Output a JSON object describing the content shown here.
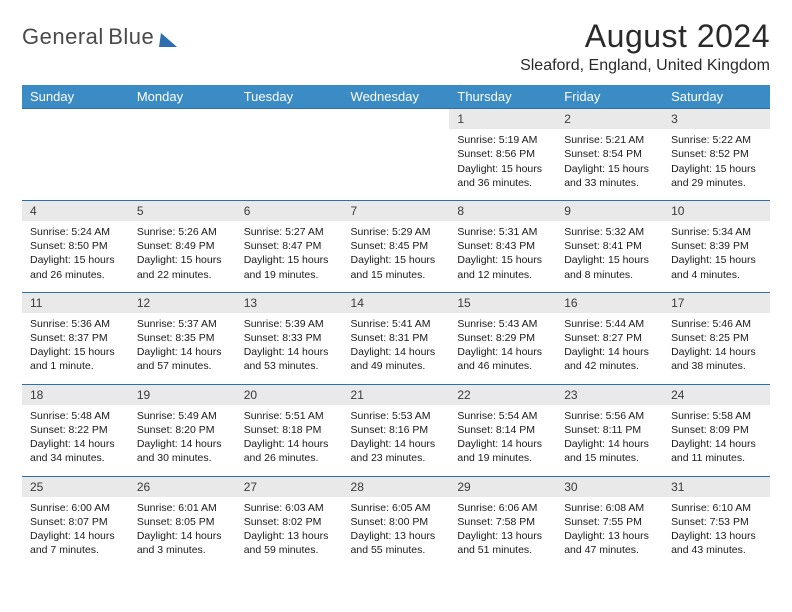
{
  "logo": {
    "line1": "General",
    "line2": "Blue"
  },
  "header": {
    "month": "August 2024",
    "location": "Sleaford, England, United Kingdom"
  },
  "colors": {
    "headerBg": "#3b8bc4",
    "dayNumBg": "#e9e9e9",
    "ruleColor": "#2f6fa8",
    "logoBlue": "#2a6db0"
  },
  "weekdays": [
    "Sunday",
    "Monday",
    "Tuesday",
    "Wednesday",
    "Thursday",
    "Friday",
    "Saturday"
  ],
  "weeks": [
    {
      "nums": [
        "",
        "",
        "",
        "",
        "1",
        "2",
        "3"
      ],
      "cells": [
        null,
        null,
        null,
        null,
        {
          "sunrise": "Sunrise: 5:19 AM",
          "sunset": "Sunset: 8:56 PM",
          "daylight": "Daylight: 15 hours and 36 minutes."
        },
        {
          "sunrise": "Sunrise: 5:21 AM",
          "sunset": "Sunset: 8:54 PM",
          "daylight": "Daylight: 15 hours and 33 minutes."
        },
        {
          "sunrise": "Sunrise: 5:22 AM",
          "sunset": "Sunset: 8:52 PM",
          "daylight": "Daylight: 15 hours and 29 minutes."
        }
      ]
    },
    {
      "nums": [
        "4",
        "5",
        "6",
        "7",
        "8",
        "9",
        "10"
      ],
      "cells": [
        {
          "sunrise": "Sunrise: 5:24 AM",
          "sunset": "Sunset: 8:50 PM",
          "daylight": "Daylight: 15 hours and 26 minutes."
        },
        {
          "sunrise": "Sunrise: 5:26 AM",
          "sunset": "Sunset: 8:49 PM",
          "daylight": "Daylight: 15 hours and 22 minutes."
        },
        {
          "sunrise": "Sunrise: 5:27 AM",
          "sunset": "Sunset: 8:47 PM",
          "daylight": "Daylight: 15 hours and 19 minutes."
        },
        {
          "sunrise": "Sunrise: 5:29 AM",
          "sunset": "Sunset: 8:45 PM",
          "daylight": "Daylight: 15 hours and 15 minutes."
        },
        {
          "sunrise": "Sunrise: 5:31 AM",
          "sunset": "Sunset: 8:43 PM",
          "daylight": "Daylight: 15 hours and 12 minutes."
        },
        {
          "sunrise": "Sunrise: 5:32 AM",
          "sunset": "Sunset: 8:41 PM",
          "daylight": "Daylight: 15 hours and 8 minutes."
        },
        {
          "sunrise": "Sunrise: 5:34 AM",
          "sunset": "Sunset: 8:39 PM",
          "daylight": "Daylight: 15 hours and 4 minutes."
        }
      ]
    },
    {
      "nums": [
        "11",
        "12",
        "13",
        "14",
        "15",
        "16",
        "17"
      ],
      "cells": [
        {
          "sunrise": "Sunrise: 5:36 AM",
          "sunset": "Sunset: 8:37 PM",
          "daylight": "Daylight: 15 hours and 1 minute."
        },
        {
          "sunrise": "Sunrise: 5:37 AM",
          "sunset": "Sunset: 8:35 PM",
          "daylight": "Daylight: 14 hours and 57 minutes."
        },
        {
          "sunrise": "Sunrise: 5:39 AM",
          "sunset": "Sunset: 8:33 PM",
          "daylight": "Daylight: 14 hours and 53 minutes."
        },
        {
          "sunrise": "Sunrise: 5:41 AM",
          "sunset": "Sunset: 8:31 PM",
          "daylight": "Daylight: 14 hours and 49 minutes."
        },
        {
          "sunrise": "Sunrise: 5:43 AM",
          "sunset": "Sunset: 8:29 PM",
          "daylight": "Daylight: 14 hours and 46 minutes."
        },
        {
          "sunrise": "Sunrise: 5:44 AM",
          "sunset": "Sunset: 8:27 PM",
          "daylight": "Daylight: 14 hours and 42 minutes."
        },
        {
          "sunrise": "Sunrise: 5:46 AM",
          "sunset": "Sunset: 8:25 PM",
          "daylight": "Daylight: 14 hours and 38 minutes."
        }
      ]
    },
    {
      "nums": [
        "18",
        "19",
        "20",
        "21",
        "22",
        "23",
        "24"
      ],
      "cells": [
        {
          "sunrise": "Sunrise: 5:48 AM",
          "sunset": "Sunset: 8:22 PM",
          "daylight": "Daylight: 14 hours and 34 minutes."
        },
        {
          "sunrise": "Sunrise: 5:49 AM",
          "sunset": "Sunset: 8:20 PM",
          "daylight": "Daylight: 14 hours and 30 minutes."
        },
        {
          "sunrise": "Sunrise: 5:51 AM",
          "sunset": "Sunset: 8:18 PM",
          "daylight": "Daylight: 14 hours and 26 minutes."
        },
        {
          "sunrise": "Sunrise: 5:53 AM",
          "sunset": "Sunset: 8:16 PM",
          "daylight": "Daylight: 14 hours and 23 minutes."
        },
        {
          "sunrise": "Sunrise: 5:54 AM",
          "sunset": "Sunset: 8:14 PM",
          "daylight": "Daylight: 14 hours and 19 minutes."
        },
        {
          "sunrise": "Sunrise: 5:56 AM",
          "sunset": "Sunset: 8:11 PM",
          "daylight": "Daylight: 14 hours and 15 minutes."
        },
        {
          "sunrise": "Sunrise: 5:58 AM",
          "sunset": "Sunset: 8:09 PM",
          "daylight": "Daylight: 14 hours and 11 minutes."
        }
      ]
    },
    {
      "nums": [
        "25",
        "26",
        "27",
        "28",
        "29",
        "30",
        "31"
      ],
      "cells": [
        {
          "sunrise": "Sunrise: 6:00 AM",
          "sunset": "Sunset: 8:07 PM",
          "daylight": "Daylight: 14 hours and 7 minutes."
        },
        {
          "sunrise": "Sunrise: 6:01 AM",
          "sunset": "Sunset: 8:05 PM",
          "daylight": "Daylight: 14 hours and 3 minutes."
        },
        {
          "sunrise": "Sunrise: 6:03 AM",
          "sunset": "Sunset: 8:02 PM",
          "daylight": "Daylight: 13 hours and 59 minutes."
        },
        {
          "sunrise": "Sunrise: 6:05 AM",
          "sunset": "Sunset: 8:00 PM",
          "daylight": "Daylight: 13 hours and 55 minutes."
        },
        {
          "sunrise": "Sunrise: 6:06 AM",
          "sunset": "Sunset: 7:58 PM",
          "daylight": "Daylight: 13 hours and 51 minutes."
        },
        {
          "sunrise": "Sunrise: 6:08 AM",
          "sunset": "Sunset: 7:55 PM",
          "daylight": "Daylight: 13 hours and 47 minutes."
        },
        {
          "sunrise": "Sunrise: 6:10 AM",
          "sunset": "Sunset: 7:53 PM",
          "daylight": "Daylight: 13 hours and 43 minutes."
        }
      ]
    }
  ]
}
